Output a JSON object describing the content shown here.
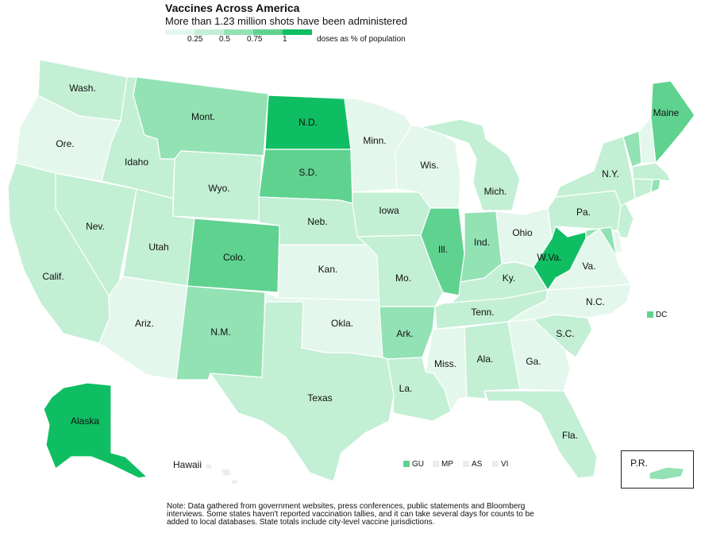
{
  "title": "Vaccines Across America",
  "subtitle": "More than 1.23 million shots have been administered",
  "legend": {
    "ticks": [
      "0.25",
      "0.5",
      "0.75",
      "1"
    ],
    "unit": "doses as % of population",
    "colors": [
      "#e4f7ec",
      "#c3efd5",
      "#92e2b4",
      "#5fd290",
      "#0fbe62"
    ]
  },
  "regions": {
    "wa": {
      "label": "Wash.",
      "level": 1
    },
    "or": {
      "label": "Ore.",
      "level": 0
    },
    "ca": {
      "label": "Calif.",
      "level": 1
    },
    "nv": {
      "label": "Nev.",
      "level": 1
    },
    "id": {
      "label": "Idaho",
      "level": 1
    },
    "mt": {
      "label": "Mont.",
      "level": 2
    },
    "wy": {
      "label": "Wyo.",
      "level": 1
    },
    "ut": {
      "label": "Utah",
      "level": 1
    },
    "az": {
      "label": "Ariz.",
      "level": 0
    },
    "co": {
      "label": "Colo.",
      "level": 3
    },
    "nm": {
      "label": "N.M.",
      "level": 2
    },
    "nd": {
      "label": "N.D.",
      "level": 4
    },
    "sd": {
      "label": "S.D.",
      "level": 3
    },
    "ne": {
      "label": "Neb.",
      "level": 1
    },
    "ks": {
      "label": "Kan.",
      "level": 0
    },
    "ok": {
      "label": "Okla.",
      "level": 0
    },
    "tx": {
      "label": "Texas",
      "level": 1
    },
    "mn": {
      "label": "Minn.",
      "level": 0
    },
    "ia": {
      "label": "Iowa",
      "level": 1
    },
    "mo": {
      "label": "Mo.",
      "level": 1
    },
    "ar": {
      "label": "Ark.",
      "level": 2
    },
    "la": {
      "label": "La.",
      "level": 1
    },
    "wi": {
      "label": "Wis.",
      "level": 0
    },
    "il": {
      "label": "Ill.",
      "level": 3
    },
    "mi": {
      "label": "Mich.",
      "level": 1
    },
    "in": {
      "label": "Ind.",
      "level": 2
    },
    "oh": {
      "label": "Ohio",
      "level": 0
    },
    "ky": {
      "label": "Ky.",
      "level": 1
    },
    "tn": {
      "label": "Tenn.",
      "level": 1
    },
    "ms": {
      "label": "Miss.",
      "level": 0
    },
    "al": {
      "label": "Ala.",
      "level": 1
    },
    "ga": {
      "label": "Ga.",
      "level": 0
    },
    "fl": {
      "label": "Fla.",
      "level": 1
    },
    "sc": {
      "label": "S.C.",
      "level": 1
    },
    "nc": {
      "label": "N.C.",
      "level": 0
    },
    "va": {
      "label": "Va.",
      "level": 0
    },
    "wv": {
      "label": "W.Va.",
      "level": 4
    },
    "pa": {
      "label": "Pa.",
      "level": 1
    },
    "ny": {
      "label": "N.Y.",
      "level": 1
    },
    "vt": {
      "label": "",
      "level": 2
    },
    "nh": {
      "label": "",
      "level": 0
    },
    "me": {
      "label": "Maine",
      "level": 3
    },
    "ma": {
      "label": "",
      "level": 1
    },
    "ct": {
      "label": "",
      "level": 1
    },
    "ri": {
      "label": "",
      "level": 2
    },
    "nj": {
      "label": "",
      "level": 1
    },
    "de": {
      "label": "",
      "level": 0
    },
    "md": {
      "label": "",
      "level": 2
    },
    "ak": {
      "label": "Alaska",
      "level": 4
    },
    "hi": {
      "label": "Hawaii",
      "level": null
    },
    "pr": {
      "label": "P.R.",
      "level": 2
    }
  },
  "territories": [
    {
      "label": "DC",
      "level": 3
    },
    {
      "label": "GU",
      "level": 3
    },
    {
      "label": "MP",
      "level": null
    },
    {
      "label": "AS",
      "level": null
    },
    {
      "label": "VI",
      "level": null
    }
  ],
  "no_data_color": "#ececec",
  "note": "Note: Data gathered from government websites, press conferences, public statements and Bloomberg interviews. Some states haven't reported vaccination tallies, and it can take several days for counts to be added to local databases. State totals include city-level vaccine jurisdictions."
}
